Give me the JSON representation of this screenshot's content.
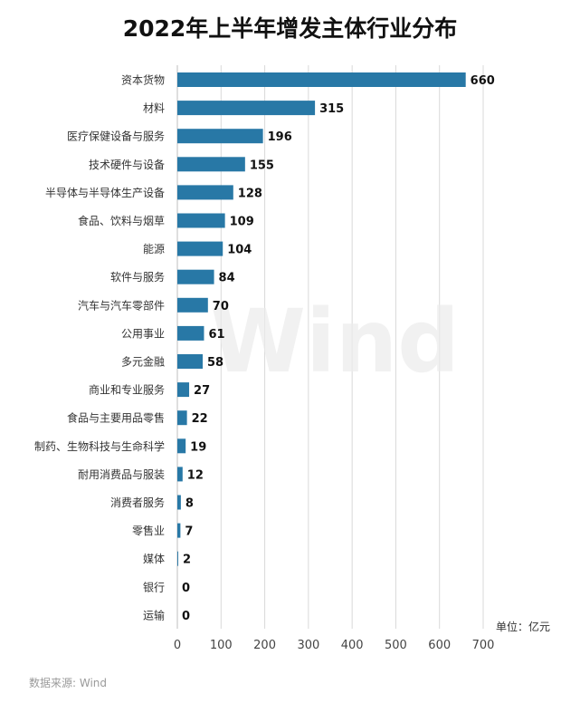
{
  "title": "2022年上半年增发主体行业分布",
  "unit_label": "单位：亿元",
  "source_label": "数据来源: Wind",
  "watermark": "Wind",
  "colors": {
    "bar": "#2878a6",
    "grid": "#d9d9d9",
    "axis": "#bfbfbf"
  },
  "chart_data": {
    "type": "bar",
    "orientation": "horizontal",
    "title": "2022年上半年增发主体行业分布",
    "categories": [
      "资本货物",
      "材料",
      "医疗保健设备与服务",
      "技术硬件与设备",
      "半导体与半导体生产设备",
      "食品、饮料与烟草",
      "能源",
      "软件与服务",
      "汽车与汽车零部件",
      "公用事业",
      "多元金融",
      "商业和专业服务",
      "食品与主要用品零售",
      "制药、生物科技与生命科学",
      "耐用消费品与服装",
      "消费者服务",
      "零售业",
      "媒体",
      "银行",
      "运输"
    ],
    "values": [
      660,
      315,
      196,
      155,
      128,
      109,
      104,
      84,
      70,
      61,
      58,
      27,
      22,
      19,
      12,
      8,
      7,
      2,
      0,
      0
    ],
    "xlim": [
      0,
      700
    ],
    "xticks": [
      0,
      100,
      200,
      300,
      400,
      500,
      600,
      700
    ],
    "xlabel": "",
    "ylabel": "",
    "grid": "vertical",
    "data_labels": true
  }
}
